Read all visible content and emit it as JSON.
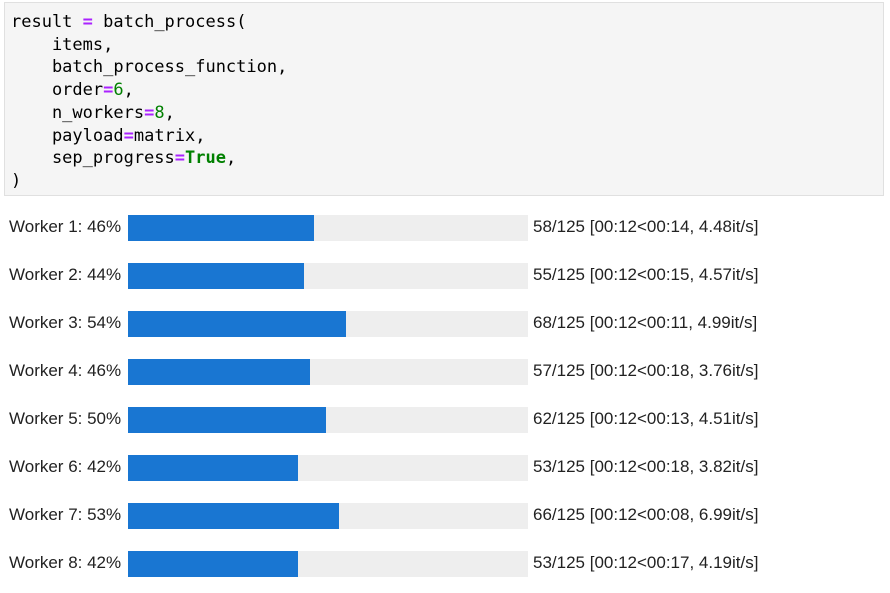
{
  "code": {
    "lines": [
      {
        "parts": [
          {
            "t": "result ",
            "c": "plain"
          },
          {
            "t": "=",
            "c": "op"
          },
          {
            "t": " batch_process(",
            "c": "plain"
          }
        ]
      },
      {
        "parts": [
          {
            "t": "    items,",
            "c": "plain"
          }
        ]
      },
      {
        "parts": [
          {
            "t": "    batch_process_function,",
            "c": "plain"
          }
        ]
      },
      {
        "parts": [
          {
            "t": "    order",
            "c": "plain"
          },
          {
            "t": "=",
            "c": "op"
          },
          {
            "t": "6",
            "c": "num"
          },
          {
            "t": ",",
            "c": "plain"
          }
        ]
      },
      {
        "parts": [
          {
            "t": "    n_workers",
            "c": "plain"
          },
          {
            "t": "=",
            "c": "op"
          },
          {
            "t": "8",
            "c": "num"
          },
          {
            "t": ",",
            "c": "plain"
          }
        ]
      },
      {
        "parts": [
          {
            "t": "    payload",
            "c": "plain"
          },
          {
            "t": "=",
            "c": "op"
          },
          {
            "t": "matrix,",
            "c": "plain"
          }
        ]
      },
      {
        "parts": [
          {
            "t": "    sep_progress",
            "c": "plain"
          },
          {
            "t": "=",
            "c": "op"
          },
          {
            "t": "True",
            "c": "kw"
          },
          {
            "t": ",",
            "c": "plain"
          }
        ]
      },
      {
        "parts": [
          {
            "t": ")",
            "c": "plain"
          }
        ]
      }
    ]
  },
  "colors": {
    "bar_fill": "#1976d2",
    "bar_track": "#eeeeee",
    "code_background": "#f5f5f5",
    "operator": "#aa22ff",
    "literal": "#008000"
  },
  "progress": {
    "workers": [
      {
        "label": "Worker 1: 46%",
        "fraction": 0.464,
        "stats": "58/125 [00:12<00:14, 4.48it/s]"
      },
      {
        "label": "Worker 2: 44%",
        "fraction": 0.44,
        "stats": "55/125 [00:12<00:15, 4.57it/s]"
      },
      {
        "label": "Worker 3: 54%",
        "fraction": 0.544,
        "stats": "68/125 [00:12<00:11, 4.99it/s]"
      },
      {
        "label": "Worker 4: 46%",
        "fraction": 0.456,
        "stats": "57/125 [00:12<00:18, 3.76it/s]"
      },
      {
        "label": "Worker 5: 50%",
        "fraction": 0.496,
        "stats": "62/125 [00:12<00:13, 4.51it/s]"
      },
      {
        "label": "Worker 6: 42%",
        "fraction": 0.424,
        "stats": "53/125 [00:12<00:18, 3.82it/s]"
      },
      {
        "label": "Worker 7: 53%",
        "fraction": 0.528,
        "stats": "66/125 [00:12<00:08, 6.99it/s]"
      },
      {
        "label": "Worker 8: 42%",
        "fraction": 0.424,
        "stats": "53/125 [00:12<00:17, 4.19it/s]"
      }
    ]
  }
}
